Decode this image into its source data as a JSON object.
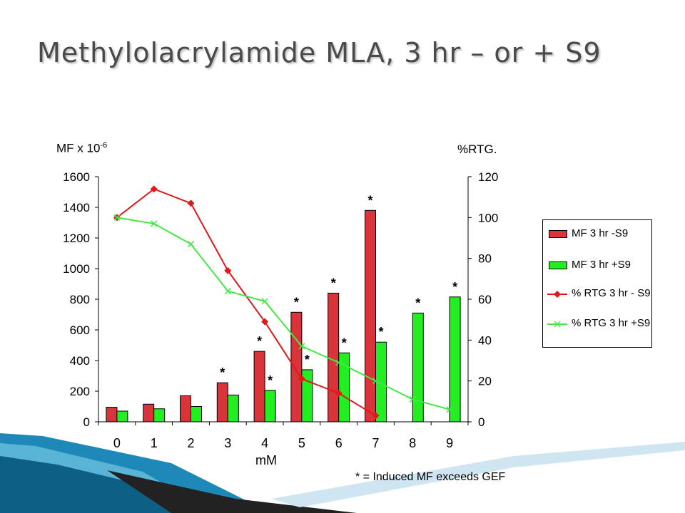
{
  "title": "Methylolacrylamide MLA, 3 hr – or + S9",
  "footnote": "* = Induced MF exceeds GEF",
  "colors": {
    "red_bar": "#d9343a",
    "green_bar": "#22ee22",
    "red_line": "#e01818",
    "green_line": "#44e844",
    "deco_blue": "#1e88b8"
  },
  "chart_data": {
    "type": "bar",
    "x": [
      "0",
      "1",
      "2",
      "3",
      "4",
      "5",
      "6",
      "7",
      "8",
      "9"
    ],
    "xlabel": "mM",
    "ylabel_left": {
      "base": "MF x 10",
      "exp": "-6"
    },
    "ylabel_right": "%RTG.",
    "y_left_lim": [
      0,
      1600
    ],
    "y_left_ticks": [
      "0",
      "200",
      "400",
      "600",
      "800",
      "1000",
      "1200",
      "1400",
      "1600"
    ],
    "y_right_lim": [
      0,
      120
    ],
    "y_right_ticks": [
      "0",
      "20",
      "40",
      "60",
      "80",
      "100",
      "120"
    ],
    "grid": false,
    "legend_position": "right",
    "series": [
      {
        "name": "MF 3 hr -S9",
        "kind": "bar",
        "axis": "left",
        "color": "#d9343a",
        "values": [
          95,
          115,
          170,
          255,
          460,
          715,
          840,
          1380,
          null,
          null
        ],
        "significant": [
          false,
          false,
          false,
          true,
          true,
          true,
          true,
          true,
          false,
          false
        ]
      },
      {
        "name": "MF 3 hr +S9",
        "kind": "bar",
        "axis": "left",
        "color": "#22ee22",
        "values": [
          70,
          85,
          100,
          175,
          205,
          340,
          450,
          520,
          710,
          815
        ],
        "significant": [
          false,
          false,
          false,
          false,
          true,
          true,
          true,
          true,
          true,
          true
        ]
      },
      {
        "name": "% RTG 3 hr - S9",
        "kind": "line",
        "axis": "right",
        "color": "#e01818",
        "marker": "diamond",
        "values": [
          100,
          114,
          107,
          74,
          49,
          21,
          14,
          3,
          null,
          null
        ]
      },
      {
        "name": "% RTG 3 hr +S9",
        "kind": "line",
        "axis": "right",
        "color": "#44e844",
        "marker": "x",
        "values": [
          100,
          97,
          87,
          64,
          59,
          37,
          29,
          20,
          11,
          6
        ]
      }
    ],
    "significance_marker": "*"
  }
}
